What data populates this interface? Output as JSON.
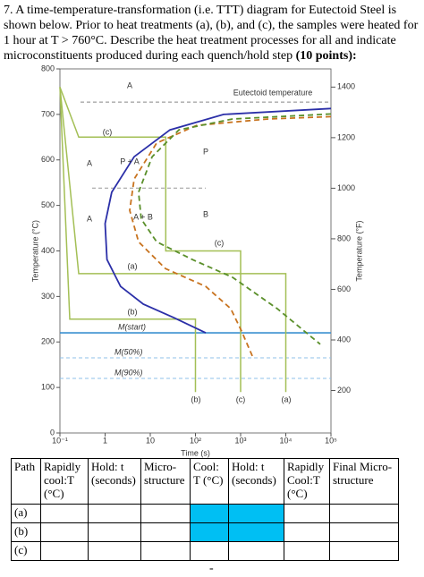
{
  "question": {
    "lines": [
      "7. A time-temperature-transformation (i.e. TTT) diagram for Eutectoid Steel is",
      "shown below.  Prior to heat treatments (a), (b), and (c), the samples were heated for",
      "1 hour at T > 760°C.  Describe the heat treatment processes for all and indicate",
      "microconstituents produced during each quench/hold step"
    ],
    "points": "(10 points):"
  },
  "chart_data": {
    "type": "line",
    "x_label": "Time (s)",
    "y_label": "Temperature (°C)",
    "y2_label": "Temperature (°F)",
    "log_x": true,
    "xlim": [
      0.1,
      100000
    ],
    "xticks": [
      {
        "value": 0.1,
        "label": "10⁻¹"
      },
      1,
      10,
      {
        "value": 100,
        "label": "10²"
      },
      {
        "value": 1000,
        "label": "10³"
      },
      {
        "value": 10000,
        "label": "10⁴"
      },
      {
        "value": 100000,
        "label": "10⁵"
      }
    ],
    "ylim": [
      0,
      800
    ],
    "yticks": [
      0,
      100,
      200,
      300,
      400,
      500,
      600,
      700,
      800
    ],
    "y2lim": [
      32,
      1472
    ],
    "y2ticks": [
      200,
      400,
      600,
      800,
      1000,
      1200,
      1400
    ],
    "ref_lines": [
      {
        "value": 727,
        "label": "Eutectoid temperature",
        "color": "#888888",
        "dash": true
      },
      {
        "value": 538,
        "color": "#999999",
        "dash": true
      },
      {
        "value": 220,
        "label": "M(start)",
        "color": "#3a8fd0",
        "dash": false
      },
      {
        "value": 165,
        "label": "M(50%)",
        "color": "#8fc0e8",
        "dash": true
      },
      {
        "value": 120,
        "label": "M(90%)",
        "color": "#8fc0e8",
        "dash": true
      }
    ],
    "curves": [
      {
        "color": "#2b2fa8",
        "dash": false,
        "x": [
          100000,
          421,
          27.3,
          4.4,
          1.4,
          1.0,
          1.1,
          2.2,
          7,
          34,
          169
        ],
        "y": [
          713,
          700,
          666,
          607,
          529,
          460,
          381,
          322,
          283,
          253,
          220
        ]
      },
      {
        "color": "#c8731f",
        "dash": true,
        "x": [
          100000,
          4110,
          107,
          13.8,
          4.4,
          3.5,
          5.5,
          21.7,
          169,
          605,
          1047,
          1893
        ],
        "y": [
          695,
          690,
          676,
          637,
          558,
          489,
          420,
          361,
          322,
          273,
          224,
          165
        ]
      },
      {
        "color": "#5a8f2a",
        "dash": true,
        "x": [
          100000,
          663,
          43,
          11,
          5.5,
          6.3,
          13.8,
          86,
          663,
          6490,
          57800
        ],
        "y": [
          701,
          690,
          666,
          607,
          529,
          470,
          420,
          381,
          342,
          273,
          195
        ]
      }
    ],
    "paths": [
      {
        "label": "(a)",
        "color": "#a3bf55",
        "x": [
          0.1,
          0.26,
          10000,
          10000
        ],
        "y": [
          760,
          350,
          350,
          90
        ]
      },
      {
        "label": "(b)",
        "color": "#a3bf55",
        "x": [
          0.1,
          0.165,
          100,
          100
        ],
        "y": [
          760,
          250,
          250,
          90
        ]
      },
      {
        "label": "(c)",
        "color": "#a3bf55",
        "x": [
          0.1,
          0.26,
          22,
          22,
          1000,
          1000
        ],
        "y": [
          760,
          650,
          650,
          400,
          400,
          90
        ]
      }
    ],
    "regions": [
      "A",
      "A",
      "A",
      "P",
      "P + A",
      "B",
      "A + B"
    ]
  },
  "table": {
    "header": [
      "Path",
      "Rapidly cool:T (°C)",
      "Hold: t (seconds)",
      "Micro-structure",
      "Cool: T (°C)",
      "Hold: t (seconds)",
      "Rapidly Cool:T (°C)",
      "Final Micro-structure"
    ],
    "rows": [
      "(a)",
      "(b)",
      "(c)"
    ]
  }
}
